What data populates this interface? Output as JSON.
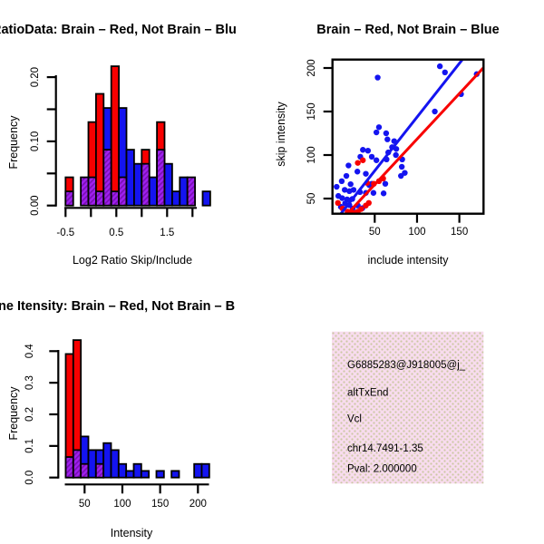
{
  "colors": {
    "red": "#F80000",
    "blue": "#1414F0",
    "overlap_purple": "#A020F0",
    "overlap_stripe": "#7A10B4",
    "axis": "#000000",
    "info_bg": "#F8DCEE",
    "info_dot": "#CCC8A4",
    "pval": "#AA2233"
  },
  "panels": {
    "ratio_hist": {
      "title": "RatioData: Brain – Red, Not Brain – Blu",
      "xlabel": "Log2 Ratio Skip/Include",
      "ylabel": "Frequency"
    },
    "scatter": {
      "title": "Brain – Red, Not Brain – Blue",
      "xlabel": "include intensity",
      "ylabel": "skip intensity"
    },
    "gene_hist": {
      "title": "ne Itensity: Brain – Red, Not Brain – B",
      "xlabel": "Intensity",
      "ylabel": "Frequency"
    },
    "info_panel": {
      "lines": [
        "G6885283@J918005@j_",
        "altTxEnd",
        "Vcl",
        "chr14.7491-1.35",
        "Pval: 2.000000"
      ],
      "pval_color": "#AA2233"
    }
  },
  "chart_data": [
    {
      "id": "ratio_hist",
      "type": "bar",
      "subtype": "overlaid-histogram",
      "title": "RatioData: Brain – Red, Not Brain – Blu",
      "xlabel": "Log2 Ratio Skip/Include",
      "ylabel": "Frequency",
      "bin_start": -0.5,
      "bin_width": 0.15,
      "xlim": [
        -0.5,
        2.35
      ],
      "ylim": [
        0,
        0.22
      ],
      "x_ticks": [
        -0.5,
        0,
        0.5,
        1,
        1.5,
        2
      ],
      "x_tick_labels": [
        "-0.5",
        "",
        "0.5",
        "",
        "1.5",
        ""
      ],
      "y_ticks": [
        0,
        0.05,
        0.1,
        0.15,
        0.2
      ],
      "y_tick_labels": [
        "0.00",
        "",
        "0.10",
        "",
        "0.20"
      ],
      "series": [
        {
          "name": "Brain (red)",
          "color": "red",
          "heights": [
            0.044,
            0,
            0.044,
            0.13,
            0.174,
            0.087,
            0.217,
            0.044,
            0,
            0,
            0.087,
            0,
            0.13,
            0,
            0,
            0,
            0.044,
            0,
            0
          ]
        },
        {
          "name": "Not Brain (blue)",
          "color": "blue",
          "heights": [
            0.022,
            0,
            0.044,
            0.044,
            0.022,
            0.152,
            0.022,
            0.152,
            0.087,
            0.065,
            0.065,
            0.044,
            0.087,
            0.065,
            0.022,
            0.044,
            0.044,
            0,
            0.022
          ]
        }
      ],
      "overlap_style": "purple-hatch"
    },
    {
      "id": "scatter",
      "type": "scatter",
      "title": "Brain – Red, Not Brain – Blue",
      "xlabel": "include intensity",
      "ylabel": "skip intensity",
      "xlim": [
        0,
        178
      ],
      "ylim": [
        32,
        210
      ],
      "x_ticks": [
        50,
        100,
        150
      ],
      "x_tick_labels": [
        "50",
        "100",
        "150"
      ],
      "y_ticks": [
        50,
        100,
        150,
        200
      ],
      "y_tick_labels": [
        "50",
        "100",
        "150",
        "200"
      ],
      "series": [
        {
          "name": "Not Brain (blue)",
          "color": "blue",
          "points": [
            [
              53.5,
              189
            ],
            [
              127,
              202
            ],
            [
              133,
              195
            ],
            [
              170.5,
              193
            ],
            [
              152,
              170
            ],
            [
              121,
              150
            ],
            [
              55,
              132
            ],
            [
              52,
              126
            ],
            [
              63.5,
              125
            ],
            [
              65,
              118
            ],
            [
              73,
              116
            ],
            [
              70.5,
              109
            ],
            [
              75.5,
              107
            ],
            [
              36,
              106
            ],
            [
              42,
              105
            ],
            [
              66,
              103
            ],
            [
              75,
              100
            ],
            [
              46.5,
              98
            ],
            [
              33,
              98
            ],
            [
              64,
              95
            ],
            [
              52,
              94
            ],
            [
              82.5,
              95
            ],
            [
              19,
              88
            ],
            [
              29.5,
              81
            ],
            [
              82,
              86.5
            ],
            [
              85.5,
              79.5
            ],
            [
              81,
              76
            ],
            [
              16.5,
              76
            ],
            [
              39.5,
              78.5
            ],
            [
              11,
              70
            ],
            [
              21.5,
              66.5
            ],
            [
              43.5,
              65.5
            ],
            [
              46.5,
              67
            ],
            [
              62.5,
              67
            ],
            [
              5,
              63.5
            ],
            [
              14.5,
              60
            ],
            [
              20,
              58.5
            ],
            [
              25,
              60
            ],
            [
              32.5,
              57.5
            ],
            [
              39.5,
              56.5
            ],
            [
              48.5,
              56.5
            ],
            [
              60.5,
              56
            ],
            [
              7,
              53
            ],
            [
              11.5,
              50.5
            ],
            [
              17.5,
              49
            ],
            [
              23.5,
              49.5
            ],
            [
              15,
              44.5
            ],
            [
              20,
              42.5
            ],
            [
              10,
              40.5
            ],
            [
              24,
              38.5
            ],
            [
              30,
              42
            ],
            [
              35.5,
              39
            ]
          ]
        },
        {
          "name": "Brain (red)",
          "color": "red",
          "points": [
            [
              6.5,
              45
            ],
            [
              12,
              38.5
            ],
            [
              18,
              35
            ],
            [
              22,
              35
            ],
            [
              26,
              33.5
            ],
            [
              30,
              35
            ],
            [
              34,
              38
            ],
            [
              39.5,
              42
            ],
            [
              43,
              45
            ],
            [
              30,
              91
            ],
            [
              36,
              94
            ],
            [
              41,
              68
            ],
            [
              49,
              67
            ],
            [
              55,
              70
            ],
            [
              60,
              73
            ]
          ]
        }
      ],
      "lines": [
        {
          "name": "blue fit",
          "color": "blue",
          "from": [
            10.0,
            32.6
          ],
          "to": [
            153.6,
            209.7
          ]
        },
        {
          "name": "red fit",
          "color": "red",
          "from": [
            17.9,
            32.6
          ],
          "to": [
            178.4,
            200.2
          ]
        }
      ]
    },
    {
      "id": "gene_hist",
      "type": "bar",
      "subtype": "overlaid-histogram",
      "title": "ne Itensity: Brain – Red, Not Brain – B",
      "xlabel": "Intensity",
      "ylabel": "Frequency",
      "bin_start": 25,
      "bin_width": 10,
      "xlim": [
        25,
        215
      ],
      "ylim": [
        0,
        0.44
      ],
      "x_ticks": [
        50,
        100,
        150,
        200
      ],
      "x_tick_labels": [
        "50",
        "100",
        "150",
        "200"
      ],
      "y_ticks": [
        0,
        0.1,
        0.2,
        0.3,
        0.4
      ],
      "y_tick_labels": [
        "0.0",
        "0.1",
        "0.2",
        "0.3",
        "0.4"
      ],
      "series": [
        {
          "name": "Brain (red)",
          "color": "red",
          "heights": [
            0.391,
            0.435,
            0.043,
            0,
            0.043,
            0,
            0,
            0,
            0,
            0,
            0,
            0,
            0,
            0,
            0,
            0,
            0,
            0,
            0
          ]
        },
        {
          "name": "Not Brain (blue)",
          "color": "blue",
          "heights": [
            0.065,
            0.087,
            0.13,
            0.087,
            0.087,
            0.109,
            0.087,
            0.043,
            0.021,
            0.043,
            0.021,
            0,
            0.021,
            0,
            0.021,
            0,
            0,
            0.043,
            0.043
          ]
        }
      ],
      "overlap_style": "purple-hatch"
    }
  ]
}
